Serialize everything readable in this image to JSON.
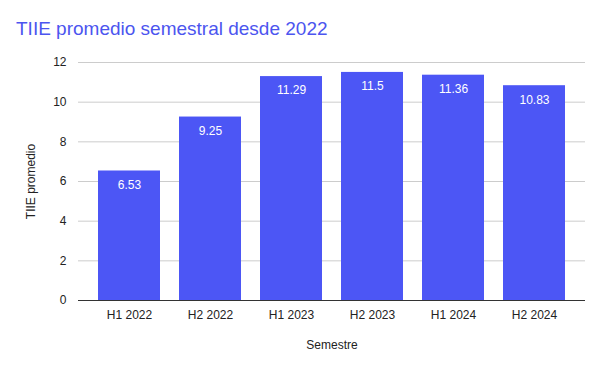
{
  "chart_data": {
    "type": "bar",
    "title": "TIIE promedio semestral desde 2022",
    "x_label": "Semestre",
    "y_label": "TIIE promedio",
    "categories": [
      "H1 2022",
      "H2 2022",
      "H1 2023",
      "H2 2023",
      "H1 2024",
      "H2 2024"
    ],
    "values": [
      6.53,
      9.25,
      11.29,
      11.5,
      11.36,
      10.83
    ],
    "color": "#4c56f5",
    "ylim": [
      0,
      12
    ],
    "yticks": [
      0,
      2,
      4,
      6,
      8,
      10,
      12
    ],
    "grid": true,
    "data_labels": true
  }
}
